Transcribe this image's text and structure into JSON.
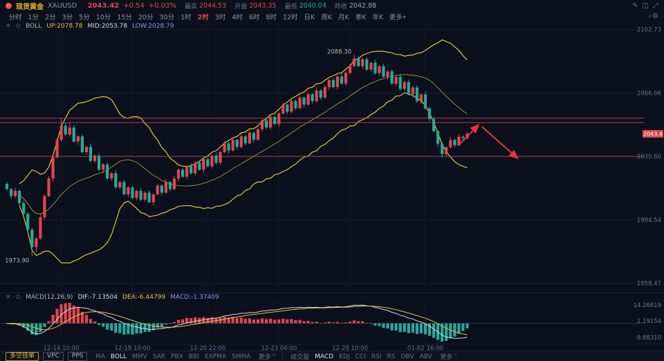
{
  "colors": {
    "up": "#e0474e",
    "down": "#2aa79b",
    "band": "#e9c53d",
    "grid": "#151c2b",
    "gridv": "#121927",
    "hline": "#c04a55",
    "arrow": "#ef2f3c",
    "dif": "#d8dce6",
    "dea": "#e9c53d",
    "price_tag_bg": "#e0474e"
  },
  "icons": {
    "draw": "✎",
    "layout": "◫",
    "expand": "⤢",
    "search": "⌕",
    "settings": "⚙",
    "close": "✕",
    "dot": "⊙",
    "caret_down": "▾",
    "caret_up": "⌃"
  },
  "header": {
    "symbol_name": "现货黄金",
    "symbol_code": "XAUUSD",
    "sep": "·",
    "price": "2043.42",
    "change": "+0.54",
    "change_pct": "+0.03%",
    "stats": [
      {
        "label": "最高",
        "value": "2044.53",
        "color": "red"
      },
      {
        "label": "开盘",
        "value": "2043.35",
        "color": "red"
      },
      {
        "label": "最低",
        "value": "2040.04",
        "color": "green"
      },
      {
        "label": "昨收",
        "value": "2042.88",
        "color": "muted"
      }
    ]
  },
  "timeframes": {
    "items": [
      "分时",
      "1分",
      "2分",
      "3分",
      "5分",
      "10分",
      "15分",
      "20分",
      "30分",
      "1时",
      "2时",
      "3时",
      "4时",
      "6时",
      "8时",
      "12时",
      "日K",
      "周K",
      "月K",
      "季K",
      "年K"
    ],
    "active": "2时",
    "more_label": "更多"
  },
  "boll_header": {
    "name": "BOLL",
    "up": "UP:2078.78",
    "mid": "MID:2053.78",
    "low": "LOW:2028.79"
  },
  "macd_header": {
    "name": "MACD(12,26,9)",
    "dif": "DIF:-7.13504",
    "dea": "DEA:-6.44799",
    "macd": "MACD:-1.37409"
  },
  "toolbar": {
    "buttons": [
      {
        "label": "多空挂单",
        "accent": true
      },
      {
        "label": "VPC",
        "accent": false
      },
      {
        "label": "PPS",
        "accent": false
      }
    ],
    "overlays": [
      "MA",
      "BOLL",
      "MMV",
      "SAR",
      "PBX",
      "BBI",
      "EXPMA",
      "SMMA"
    ],
    "overlays_active": "BOLL",
    "more_overlays": "更多",
    "indicators": [
      "成交量",
      "MACD",
      "KDJ",
      "CCI",
      "RSI",
      "RS",
      "OBV",
      "ABV"
    ],
    "indicators_active": "MACD",
    "more_indicators": "更多"
  },
  "chart_data": {
    "type": "candlestick",
    "symbol": "XAUUSD",
    "boll_params": {
      "period": 20,
      "k": 2
    },
    "macd_params": {
      "fast": 12,
      "slow": 26,
      "signal": 9
    },
    "y_ticks": [
      "2102.73",
      "2066.66",
      "2030.60",
      "1994.54",
      "1958.47"
    ],
    "macd_ticks": [
      "14.26619",
      "2.19154",
      "-9.88310"
    ],
    "x_ticks": [
      {
        "label": "12-14 10:00",
        "index": 13
      },
      {
        "label": "12-18 10:00",
        "index": 30
      },
      {
        "label": "12-20 22:00",
        "index": 48
      },
      {
        "label": "12-23 04:00",
        "index": 65
      },
      {
        "label": "12-28 10:00",
        "index": 82
      },
      {
        "label": "01-02 16:00",
        "index": 100
      }
    ],
    "h_lines": [
      2052.3,
      2049.8,
      2030.6
    ],
    "price_tag": {
      "text": "2043.4",
      "price": 2043.42
    },
    "annotations": [
      {
        "text": "2088.30",
        "index": 83,
        "price": 2088.3,
        "pos": "above"
      },
      {
        "text": "1973.90",
        "index": 6,
        "price": 1973.9,
        "pos": "below"
      }
    ],
    "arrows": [
      {
        "from": [
          108.2,
          2037.5
        ],
        "to": [
          112.5,
          2048.0
        ]
      },
      {
        "from": [
          113.5,
          2047.5
        ],
        "to": [
          121.8,
          2030.0
        ]
      }
    ],
    "candles": [
      [
        2015.0,
        2016.1,
        2011.3,
        2012.0
      ],
      [
        2012.0,
        2012.6,
        2006.6,
        2008.0
      ],
      [
        2008.0,
        2012.8,
        2007.1,
        2011.0
      ],
      [
        2011.0,
        2011.9,
        2002.8,
        2004.0
      ],
      [
        2004.0,
        2005.4,
        1997.4,
        1998.0
      ],
      [
        1998.0,
        1998.7,
        1987.2,
        1989.0
      ],
      [
        1989.0,
        1990.0,
        1973.9,
        1979.0
      ],
      [
        1979.0,
        1984.6,
        1976.3,
        1984.0
      ],
      [
        1984.0,
        1997.8,
        1983.1,
        1996.0
      ],
      [
        1996.0,
        2008.9,
        1994.8,
        2008.0
      ],
      [
        2008.0,
        2019.4,
        2007.4,
        2018.0
      ],
      [
        2018.0,
        2030.7,
        2016.2,
        2030.0
      ],
      [
        2030.0,
        2041.1,
        2029.3,
        2040.0
      ],
      [
        2040.0,
        2052.5,
        2039.2,
        2048.0
      ],
      [
        2048.0,
        2049.8,
        2042.1,
        2043.0
      ],
      [
        2043.0,
        2050.0,
        2041.8,
        2047.0
      ],
      [
        2047.0,
        2048.4,
        2038.4,
        2039.0
      ],
      [
        2039.0,
        2042.7,
        2037.2,
        2042.0
      ],
      [
        2042.0,
        2043.1,
        2032.3,
        2033.0
      ],
      [
        2033.0,
        2036.6,
        2031.6,
        2036.0
      ],
      [
        2036.0,
        2037.8,
        2027.1,
        2028.0
      ],
      [
        2028.0,
        2031.9,
        2026.8,
        2031.0
      ],
      [
        2031.0,
        2032.4,
        2022.4,
        2023.0
      ],
      [
        2023.0,
        2026.7,
        2021.2,
        2026.0
      ],
      [
        2026.0,
        2027.1,
        2017.3,
        2018.0
      ],
      [
        2018.0,
        2021.6,
        2016.6,
        2021.0
      ],
      [
        2021.0,
        2022.8,
        2012.1,
        2013.0
      ],
      [
        2013.0,
        2016.9,
        2011.8,
        2016.0
      ],
      [
        2016.0,
        2017.4,
        2008.4,
        2009.0
      ],
      [
        2009.0,
        2013.7,
        2007.2,
        2013.0
      ],
      [
        2013.0,
        2014.1,
        2006.3,
        2007.0
      ],
      [
        2007.0,
        2011.6,
        2005.6,
        2011.0
      ],
      [
        2011.0,
        2012.8,
        2005.1,
        2006.0
      ],
      [
        2006.0,
        2010.9,
        2004.8,
        2010.0
      ],
      [
        2010.0,
        2011.4,
        2003.9,
        2004.5
      ],
      [
        2004.5,
        2009.7,
        2002.7,
        2009.0
      ],
      [
        2009.0,
        2015.1,
        2008.3,
        2014.0
      ],
      [
        2014.0,
        2014.6,
        2008.6,
        2010.0
      ],
      [
        2010.0,
        2017.8,
        2009.1,
        2016.0
      ],
      [
        2016.0,
        2016.9,
        2010.8,
        2012.0
      ],
      [
        2012.0,
        2019.4,
        2011.4,
        2018.0
      ],
      [
        2018.0,
        2023.7,
        2016.2,
        2023.0
      ],
      [
        2023.0,
        2024.1,
        2018.3,
        2019.0
      ],
      [
        2019.0,
        2025.6,
        2017.6,
        2025.0
      ],
      [
        2025.0,
        2026.8,
        2020.1,
        2021.0
      ],
      [
        2021.0,
        2027.9,
        2019.8,
        2027.0
      ],
      [
        2027.0,
        2028.4,
        2022.4,
        2023.0
      ],
      [
        2023.0,
        2029.7,
        2021.2,
        2029.0
      ],
      [
        2029.0,
        2030.1,
        2024.3,
        2025.0
      ],
      [
        2025.0,
        2031.6,
        2023.6,
        2031.0
      ],
      [
        2031.0,
        2032.8,
        2026.1,
        2027.0
      ],
      [
        2027.0,
        2033.9,
        2025.8,
        2033.0
      ],
      [
        2033.0,
        2039.4,
        2032.4,
        2038.0
      ],
      [
        2038.0,
        2038.7,
        2032.2,
        2034.0
      ],
      [
        2034.0,
        2041.1,
        2033.3,
        2040.0
      ],
      [
        2040.0,
        2040.6,
        2034.6,
        2036.0
      ],
      [
        2036.0,
        2043.8,
        2035.1,
        2042.0
      ],
      [
        2042.0,
        2042.9,
        2036.8,
        2038.0
      ],
      [
        2038.0,
        2045.4,
        2037.4,
        2044.0
      ],
      [
        2044.0,
        2044.7,
        2038.2,
        2040.0
      ],
      [
        2040.0,
        2047.1,
        2039.3,
        2046.0
      ],
      [
        2046.0,
        2051.6,
        2044.6,
        2051.0
      ],
      [
        2051.0,
        2052.8,
        2046.1,
        2047.0
      ],
      [
        2047.0,
        2053.9,
        2045.8,
        2053.0
      ],
      [
        2053.0,
        2054.4,
        2048.4,
        2049.0
      ],
      [
        2049.0,
        2055.7,
        2047.2,
        2055.0
      ],
      [
        2055.0,
        2061.1,
        2054.3,
        2060.0
      ],
      [
        2060.0,
        2060.6,
        2054.6,
        2056.0
      ],
      [
        2056.0,
        2063.8,
        2055.1,
        2062.0
      ],
      [
        2062.0,
        2062.9,
        2056.8,
        2058.0
      ],
      [
        2058.0,
        2065.4,
        2057.4,
        2064.0
      ],
      [
        2064.0,
        2064.7,
        2058.2,
        2060.0
      ],
      [
        2060.0,
        2067.1,
        2059.3,
        2066.0
      ],
      [
        2066.0,
        2066.6,
        2060.6,
        2062.0
      ],
      [
        2062.0,
        2069.8,
        2061.1,
        2068.0
      ],
      [
        2068.0,
        2068.9,
        2062.8,
        2064.0
      ],
      [
        2064.0,
        2071.4,
        2063.4,
        2070.0
      ],
      [
        2070.0,
        2074.7,
        2068.2,
        2074.0
      ],
      [
        2074.0,
        2075.1,
        2069.3,
        2070.0
      ],
      [
        2070.0,
        2076.6,
        2068.6,
        2076.0
      ],
      [
        2076.0,
        2077.8,
        2071.1,
        2072.0
      ],
      [
        2072.0,
        2078.9,
        2070.8,
        2078.0
      ],
      [
        2078.0,
        2083.4,
        2077.4,
        2082.0
      ],
      [
        2082.0,
        2088.3,
        2081.2,
        2086.2
      ],
      [
        2086.2,
        2087.6,
        2081.3,
        2081.9
      ],
      [
        2081.9,
        2086.5,
        2080.1,
        2085.8
      ],
      [
        2085.8,
        2086.9,
        2079.2,
        2079.9
      ],
      [
        2079.9,
        2084.4,
        2078.5,
        2083.8
      ],
      [
        2083.8,
        2085.6,
        2077.0,
        2077.9
      ],
      [
        2077.9,
        2082.7,
        2076.7,
        2081.8
      ],
      [
        2081.8,
        2083.2,
        2075.3,
        2075.9
      ],
      [
        2075.9,
        2079.6,
        2074.1,
        2078.9
      ],
      [
        2078.9,
        2080.0,
        2071.2,
        2071.9
      ],
      [
        2071.9,
        2076.4,
        2070.5,
        2075.8
      ],
      [
        2075.8,
        2077.6,
        2068.0,
        2068.9
      ],
      [
        2068.9,
        2073.7,
        2067.7,
        2072.8
      ],
      [
        2072.8,
        2074.2,
        2065.3,
        2065.9
      ],
      [
        2065.9,
        2070.5,
        2064.1,
        2069.8
      ],
      [
        2069.8,
        2070.9,
        2061.2,
        2061.9
      ],
      [
        2061.9,
        2066.4,
        2060.5,
        2065.8
      ],
      [
        2065.8,
        2067.6,
        2057.0,
        2057.9
      ],
      [
        2057.9,
        2058.8,
        2050.6,
        2051.8
      ],
      [
        2051.8,
        2053.2,
        2044.3,
        2044.9
      ],
      [
        2044.9,
        2045.6,
        2036.0,
        2037.8
      ],
      [
        2037.8,
        2038.9,
        2029.9,
        2031.9
      ],
      [
        2031.9,
        2036.4,
        2030.5,
        2035.8
      ],
      [
        2035.8,
        2041.7,
        2034.9,
        2039.9
      ],
      [
        2039.9,
        2040.8,
        2035.7,
        2036.9
      ],
      [
        2036.9,
        2043.2,
        2036.3,
        2041.8
      ],
      [
        2041.8,
        2042.5,
        2039.8,
        2041.0
      ],
      [
        2041.0,
        2044.53,
        2040.04,
        2043.42
      ]
    ]
  }
}
